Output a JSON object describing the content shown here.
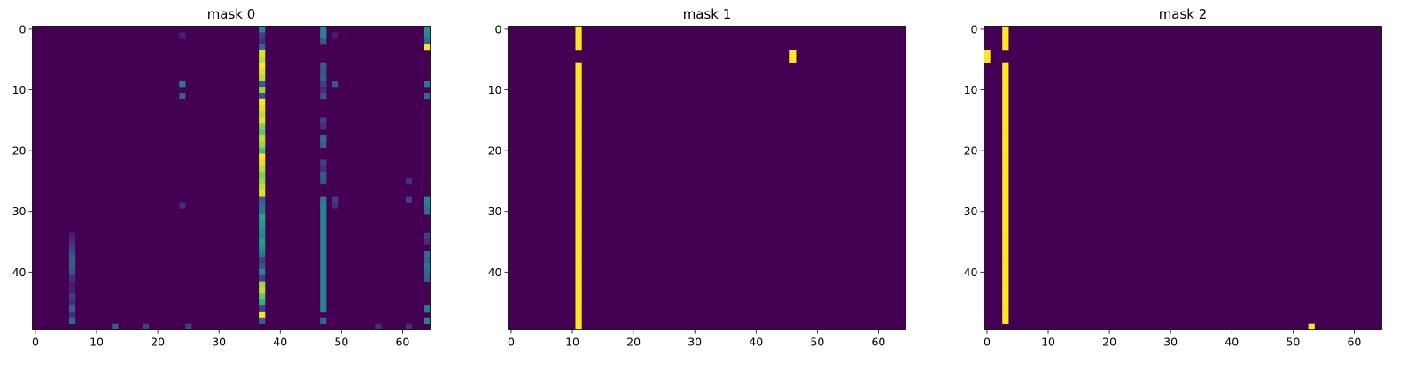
{
  "chart_data": [
    {
      "type": "heatmap",
      "title": "mask 0",
      "rows": 50,
      "cols": 65,
      "colormap": "viridis",
      "value_range": [
        0,
        1
      ],
      "background_value": 0,
      "xticks": [
        0,
        10,
        20,
        30,
        40,
        50,
        60
      ],
      "yticks": [
        0,
        10,
        20,
        30,
        40
      ],
      "column_cells": [
        {
          "col": 6,
          "rows": [
            [
              34,
              0.12
            ],
            [
              35,
              0.15
            ],
            [
              36,
              0.2
            ],
            [
              37,
              0.25
            ],
            [
              38,
              0.3
            ],
            [
              39,
              0.3
            ],
            [
              40,
              0.25
            ],
            [
              41,
              0.15
            ],
            [
              42,
              0.1
            ],
            [
              43,
              0.12
            ],
            [
              44,
              0.2
            ],
            [
              45,
              0.15
            ],
            [
              46,
              0.3
            ],
            [
              47,
              0.15
            ],
            [
              48,
              0.35
            ]
          ]
        },
        {
          "col": 13,
          "rows": [
            [
              49,
              0.3
            ]
          ]
        },
        {
          "col": 18,
          "rows": [
            [
              49,
              0.2
            ]
          ]
        },
        {
          "col": 24,
          "rows": [
            [
              1,
              0.12
            ],
            [
              9,
              0.4
            ],
            [
              11,
              0.3
            ],
            [
              29,
              0.15
            ]
          ]
        },
        {
          "col": 25,
          "rows": [
            [
              49,
              0.2
            ]
          ]
        },
        {
          "col": 37,
          "rows": [
            [
              0,
              0.45
            ],
            [
              1,
              0.2
            ],
            [
              2,
              0.15
            ],
            [
              3,
              0.35
            ],
            [
              4,
              0.95
            ],
            [
              5,
              0.9
            ],
            [
              6,
              1.0
            ],
            [
              7,
              0.95
            ],
            [
              8,
              0.9
            ],
            [
              9,
              0.3
            ],
            [
              10,
              0.85
            ],
            [
              11,
              0.25
            ],
            [
              12,
              1.0
            ],
            [
              13,
              0.95
            ],
            [
              14,
              0.9
            ],
            [
              15,
              0.95
            ],
            [
              16,
              0.8
            ],
            [
              17,
              0.75
            ],
            [
              18,
              0.9
            ],
            [
              19,
              0.85
            ],
            [
              20,
              0.7
            ],
            [
              21,
              1.0
            ],
            [
              22,
              0.95
            ],
            [
              23,
              0.9
            ],
            [
              24,
              0.8
            ],
            [
              25,
              0.85
            ],
            [
              26,
              0.9
            ],
            [
              27,
              0.95
            ],
            [
              28,
              0.3
            ],
            [
              29,
              0.35
            ],
            [
              30,
              0.4
            ],
            [
              31,
              0.6
            ],
            [
              32,
              0.55
            ],
            [
              33,
              0.5
            ],
            [
              34,
              0.45
            ],
            [
              35,
              0.55
            ],
            [
              36,
              0.5
            ],
            [
              37,
              0.4
            ],
            [
              38,
              0.2
            ],
            [
              39,
              0.25
            ],
            [
              40,
              0.45
            ],
            [
              41,
              0.2
            ],
            [
              42,
              0.85
            ],
            [
              43,
              0.9
            ],
            [
              44,
              0.75
            ],
            [
              45,
              0.65
            ],
            [
              46,
              0.2
            ],
            [
              47,
              1.0
            ],
            [
              48,
              0.3
            ]
          ]
        },
        {
          "col": 47,
          "rows": [
            [
              0,
              0.45
            ],
            [
              1,
              0.45
            ],
            [
              2,
              0.3
            ],
            [
              6,
              0.3
            ],
            [
              7,
              0.25
            ],
            [
              8,
              0.3
            ],
            [
              9,
              0.2
            ],
            [
              10,
              0.15
            ],
            [
              11,
              0.25
            ],
            [
              15,
              0.2
            ],
            [
              16,
              0.15
            ],
            [
              18,
              0.35
            ],
            [
              19,
              0.3
            ],
            [
              22,
              0.2
            ],
            [
              23,
              0.15
            ],
            [
              24,
              0.3
            ],
            [
              25,
              0.25
            ],
            [
              28,
              0.4
            ],
            [
              29,
              0.45
            ],
            [
              30,
              0.45
            ],
            [
              31,
              0.45
            ],
            [
              32,
              0.45
            ],
            [
              33,
              0.45
            ],
            [
              34,
              0.45
            ],
            [
              35,
              0.45
            ],
            [
              36,
              0.45
            ],
            [
              37,
              0.45
            ],
            [
              38,
              0.45
            ],
            [
              39,
              0.45
            ],
            [
              40,
              0.45
            ],
            [
              41,
              0.45
            ],
            [
              42,
              0.45
            ],
            [
              43,
              0.45
            ],
            [
              44,
              0.45
            ],
            [
              45,
              0.45
            ],
            [
              46,
              0.45
            ],
            [
              48,
              0.35
            ]
          ]
        },
        {
          "col": 49,
          "rows": [
            [
              1,
              0.1
            ],
            [
              9,
              0.25
            ],
            [
              28,
              0.2
            ],
            [
              29,
              0.15
            ]
          ]
        },
        {
          "col": 56,
          "rows": [
            [
              49,
              0.15
            ]
          ]
        },
        {
          "col": 61,
          "rows": [
            [
              25,
              0.15
            ],
            [
              28,
              0.2
            ],
            [
              49,
              0.15
            ]
          ]
        },
        {
          "col": 64,
          "rows": [
            [
              0,
              0.5
            ],
            [
              1,
              0.45
            ],
            [
              2,
              0.35
            ],
            [
              3,
              1.0
            ],
            [
              9,
              0.4
            ],
            [
              11,
              0.35
            ],
            [
              28,
              0.45
            ],
            [
              29,
              0.4
            ],
            [
              30,
              0.35
            ],
            [
              34,
              0.2
            ],
            [
              35,
              0.15
            ],
            [
              37,
              0.35
            ],
            [
              38,
              0.3
            ],
            [
              39,
              0.4
            ],
            [
              40,
              0.35
            ],
            [
              41,
              0.3
            ],
            [
              46,
              0.4
            ],
            [
              48,
              0.45
            ]
          ]
        }
      ]
    },
    {
      "type": "heatmap",
      "title": "mask 1",
      "rows": 50,
      "cols": 65,
      "colormap": "viridis",
      "value_range": [
        0,
        1
      ],
      "background_value": 0,
      "xticks": [
        0,
        10,
        20,
        30,
        40,
        50,
        60
      ],
      "yticks": [
        0,
        10,
        20,
        30,
        40
      ],
      "column_cells": [
        {
          "col": 11,
          "rows": [
            [
              0,
              1
            ],
            [
              1,
              1
            ],
            [
              2,
              1
            ],
            [
              3,
              1
            ],
            [
              6,
              1
            ],
            [
              7,
              1
            ],
            [
              8,
              1
            ],
            [
              9,
              1
            ],
            [
              10,
              1
            ],
            [
              11,
              1
            ],
            [
              12,
              1
            ],
            [
              13,
              1
            ],
            [
              14,
              1
            ],
            [
              15,
              1
            ],
            [
              16,
              1
            ],
            [
              17,
              1
            ],
            [
              18,
              1
            ],
            [
              19,
              1
            ],
            [
              20,
              1
            ],
            [
              21,
              1
            ],
            [
              22,
              1
            ],
            [
              23,
              1
            ],
            [
              24,
              1
            ],
            [
              25,
              1
            ],
            [
              26,
              1
            ],
            [
              27,
              1
            ],
            [
              28,
              1
            ],
            [
              29,
              1
            ],
            [
              30,
              1
            ],
            [
              31,
              1
            ],
            [
              32,
              1
            ],
            [
              33,
              1
            ],
            [
              34,
              1
            ],
            [
              35,
              1
            ],
            [
              36,
              1
            ],
            [
              37,
              1
            ],
            [
              38,
              1
            ],
            [
              39,
              1
            ],
            [
              40,
              1
            ],
            [
              41,
              1
            ],
            [
              42,
              1
            ],
            [
              43,
              1
            ],
            [
              44,
              1
            ],
            [
              45,
              1
            ],
            [
              46,
              1
            ],
            [
              47,
              1
            ],
            [
              48,
              1
            ],
            [
              49,
              1
            ]
          ]
        },
        {
          "col": 46,
          "rows": [
            [
              4,
              1
            ],
            [
              5,
              1
            ]
          ]
        }
      ]
    },
    {
      "type": "heatmap",
      "title": "mask 2",
      "rows": 50,
      "cols": 65,
      "colormap": "viridis",
      "value_range": [
        0,
        1
      ],
      "background_value": 0,
      "xticks": [
        0,
        10,
        20,
        30,
        40,
        50,
        60
      ],
      "yticks": [
        0,
        10,
        20,
        30,
        40
      ],
      "column_cells": [
        {
          "col": 0,
          "rows": [
            [
              4,
              1
            ],
            [
              5,
              1
            ]
          ]
        },
        {
          "col": 3,
          "rows": [
            [
              0,
              1
            ],
            [
              1,
              1
            ],
            [
              2,
              1
            ],
            [
              3,
              1
            ],
            [
              6,
              1
            ],
            [
              7,
              1
            ],
            [
              8,
              1
            ],
            [
              9,
              1
            ],
            [
              10,
              1
            ],
            [
              11,
              1
            ],
            [
              12,
              1
            ],
            [
              13,
              1
            ],
            [
              14,
              1
            ],
            [
              15,
              1
            ],
            [
              16,
              1
            ],
            [
              17,
              1
            ],
            [
              18,
              1
            ],
            [
              19,
              1
            ],
            [
              20,
              1
            ],
            [
              21,
              1
            ],
            [
              22,
              1
            ],
            [
              23,
              1
            ],
            [
              24,
              1
            ],
            [
              25,
              1
            ],
            [
              26,
              1
            ],
            [
              27,
              1
            ],
            [
              28,
              1
            ],
            [
              29,
              1
            ],
            [
              30,
              1
            ],
            [
              31,
              1
            ],
            [
              32,
              1
            ],
            [
              33,
              1
            ],
            [
              34,
              1
            ],
            [
              35,
              1
            ],
            [
              36,
              1
            ],
            [
              37,
              1
            ],
            [
              38,
              1
            ],
            [
              39,
              1
            ],
            [
              40,
              1
            ],
            [
              41,
              1
            ],
            [
              42,
              1
            ],
            [
              43,
              1
            ],
            [
              44,
              1
            ],
            [
              45,
              1
            ],
            [
              46,
              1
            ],
            [
              47,
              1
            ],
            [
              48,
              1
            ]
          ]
        },
        {
          "col": 53,
          "rows": [
            [
              49,
              1
            ]
          ]
        }
      ]
    }
  ]
}
